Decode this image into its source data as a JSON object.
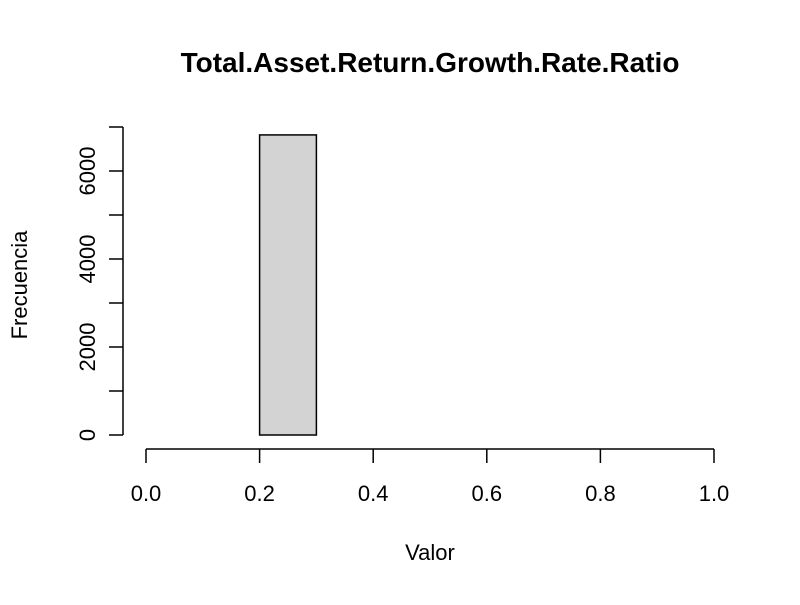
{
  "chart_data": {
    "type": "bar",
    "title": "Total.Asset.Return.Growth.Rate.Ratio",
    "xlabel": "Valor",
    "ylabel": "Frecuencia",
    "bins": [
      {
        "start": 0.0,
        "end": 0.1,
        "count": 0
      },
      {
        "start": 0.1,
        "end": 0.2,
        "count": 0
      },
      {
        "start": 0.2,
        "end": 0.3,
        "count": 6820
      },
      {
        "start": 0.3,
        "end": 0.4,
        "count": 0
      },
      {
        "start": 0.4,
        "end": 0.5,
        "count": 0
      },
      {
        "start": 0.5,
        "end": 0.6,
        "count": 0
      },
      {
        "start": 0.6,
        "end": 0.7,
        "count": 0
      },
      {
        "start": 0.7,
        "end": 0.8,
        "count": 0
      },
      {
        "start": 0.8,
        "end": 0.9,
        "count": 0
      },
      {
        "start": 0.9,
        "end": 1.0,
        "count": 0
      }
    ],
    "xlim": [
      0.0,
      1.0
    ],
    "ylim": [
      0,
      7000
    ],
    "x_ticks": [
      "0.0",
      "0.2",
      "0.4",
      "0.6",
      "0.8",
      "1.0"
    ],
    "y_ticks": [
      "0",
      "2000",
      "4000",
      "6000"
    ],
    "bar_color": "#d3d3d3",
    "edge_color": "#000000",
    "grid": false
  }
}
